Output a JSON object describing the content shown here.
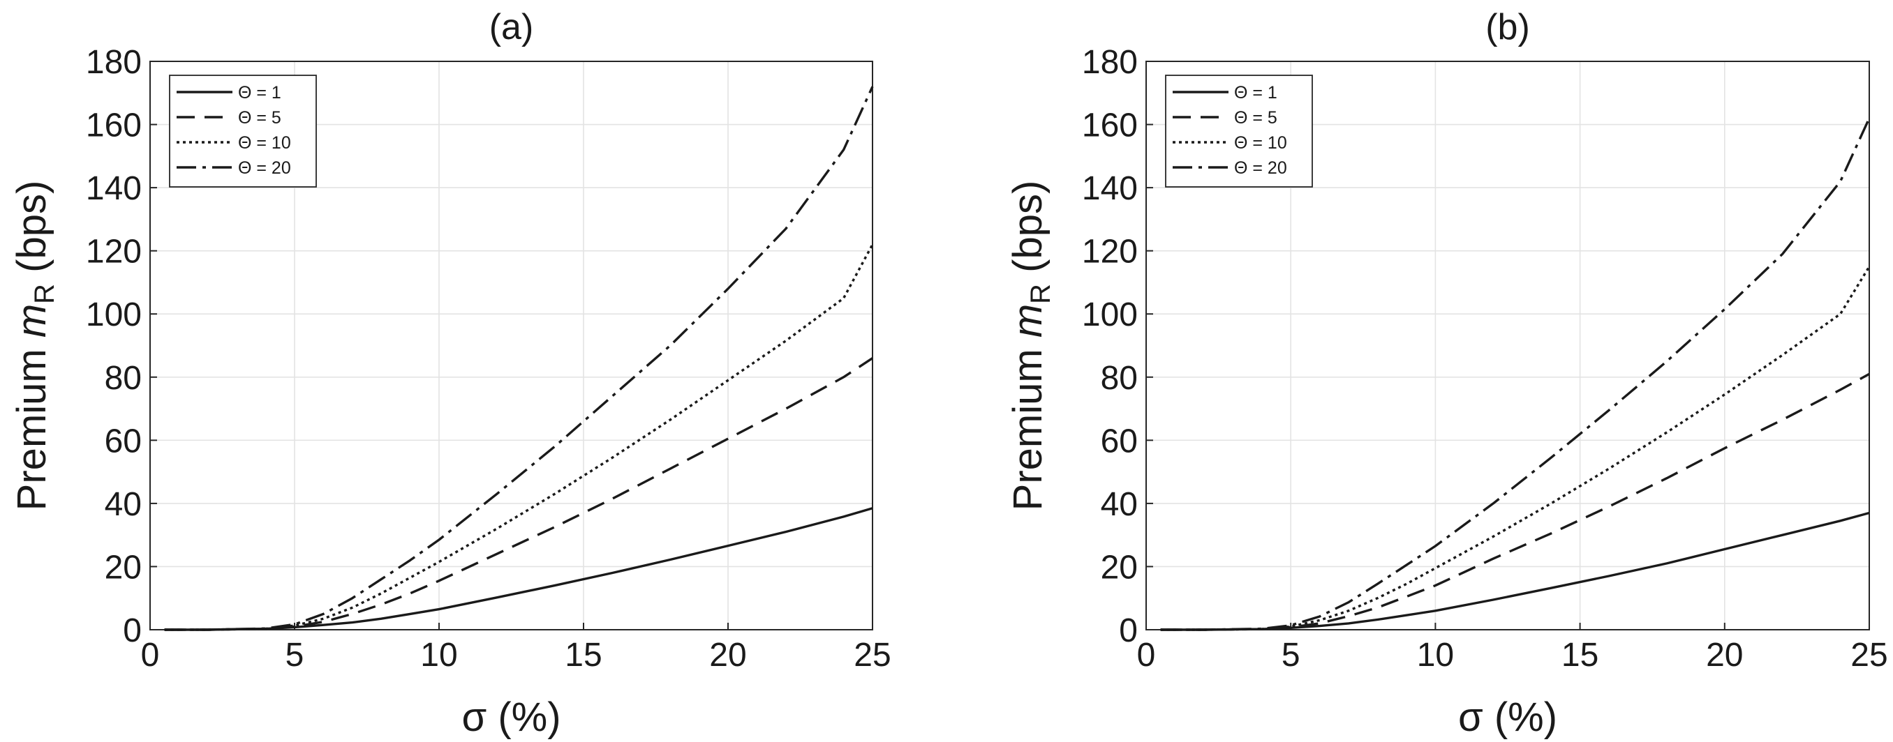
{
  "chart_data": [
    {
      "type": "line",
      "title": "(a)",
      "xlabel": "σ (%)",
      "ylabel": {
        "prefix": "Premium ",
        "symbol": "m",
        "subscript": "R",
        "suffix": " (bps)"
      },
      "xlim": [
        0,
        25
      ],
      "ylim": [
        0,
        180
      ],
      "xticks": [
        0,
        5,
        10,
        15,
        20,
        25
      ],
      "yticks": [
        0,
        20,
        40,
        60,
        80,
        100,
        120,
        140,
        160,
        180
      ],
      "grid": true,
      "legend_position": "top-left",
      "x": [
        0.5,
        2,
        4,
        5,
        6,
        7,
        8,
        9,
        10,
        12,
        14,
        16,
        18,
        20,
        22,
        24,
        25
      ],
      "series": [
        {
          "name": "Θ = 1",
          "style": "solid",
          "values": [
            0,
            0,
            0.3,
            0.8,
            1.5,
            2.3,
            3.5,
            5.0,
            6.5,
            10.2,
            14.0,
            18.0,
            22.2,
            26.6,
            31.0,
            35.8,
            38.5
          ]
        },
        {
          "name": "Θ = 5",
          "style": "dashed",
          "values": [
            0,
            0,
            0.3,
            1.0,
            2.5,
            5.0,
            8.0,
            11.5,
            15.5,
            24.0,
            32.5,
            41.5,
            51.0,
            60.5,
            70.0,
            80.0,
            86.0
          ]
        },
        {
          "name": "Θ = 10",
          "style": "dotted",
          "values": [
            0,
            0,
            0.3,
            1.3,
            3.5,
            7.0,
            11.5,
            16.5,
            21.5,
            32.0,
            43.0,
            54.5,
            66.5,
            79.0,
            91.5,
            105.0,
            122.0
          ]
        },
        {
          "name": "Θ = 20",
          "style": "dashdot",
          "values": [
            0,
            0,
            0.4,
            1.7,
            5.0,
            10.0,
            16.0,
            22.0,
            28.5,
            43.0,
            58.0,
            74.0,
            90.0,
            108.0,
            127.0,
            152.0,
            172.0
          ]
        }
      ]
    },
    {
      "type": "line",
      "title": "(b)",
      "xlabel": "σ (%)",
      "ylabel": {
        "prefix": "Premium ",
        "symbol": "m",
        "subscript": "R",
        "suffix": " (bps)"
      },
      "xlim": [
        0,
        25
      ],
      "ylim": [
        0,
        180
      ],
      "xticks": [
        0,
        5,
        10,
        15,
        20,
        25
      ],
      "yticks": [
        0,
        20,
        40,
        60,
        80,
        100,
        120,
        140,
        160,
        180
      ],
      "grid": true,
      "legend_position": "top-left",
      "x": [
        0.5,
        2,
        4,
        5,
        6,
        7,
        8,
        9,
        10,
        12,
        14,
        16,
        18,
        20,
        22,
        24,
        25
      ],
      "series": [
        {
          "name": "Θ = 1",
          "style": "solid",
          "values": [
            0,
            0,
            0.2,
            0.6,
            1.2,
            2.0,
            3.2,
            4.6,
            6.0,
            9.5,
            13.2,
            17.0,
            21.0,
            25.5,
            30.0,
            34.5,
            37.0
          ]
        },
        {
          "name": "Θ = 5",
          "style": "dashed",
          "values": [
            0,
            0,
            0.2,
            0.8,
            2.0,
            4.3,
            7.0,
            10.5,
            14.0,
            22.5,
            30.5,
            39.0,
            48.0,
            57.5,
            66.5,
            76.0,
            81.0
          ]
        },
        {
          "name": "Θ = 10",
          "style": "dotted",
          "values": [
            0,
            0,
            0.2,
            1.0,
            3.0,
            6.0,
            10.0,
            14.5,
            19.5,
            29.5,
            40.0,
            51.0,
            62.5,
            74.5,
            87.0,
            100.0,
            115.0
          ]
        },
        {
          "name": "Θ = 20",
          "style": "dashdot",
          "values": [
            0,
            0,
            0.3,
            1.4,
            4.2,
            8.7,
            14.5,
            20.5,
            26.5,
            40.0,
            54.5,
            69.5,
            85.0,
            101.5,
            119.0,
            142.0,
            162.0
          ]
        }
      ]
    }
  ]
}
